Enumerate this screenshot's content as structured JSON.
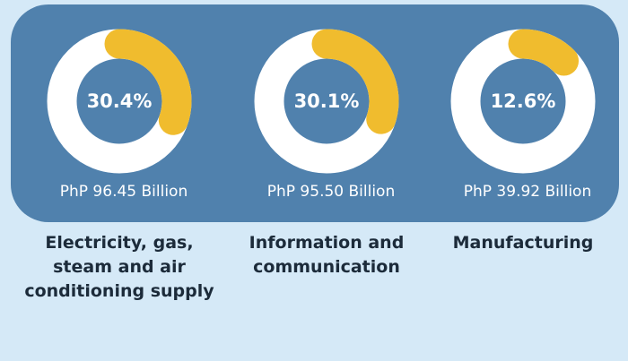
{
  "chart_data": {
    "type": "donut",
    "categories": [
      "Electricity, gas, steam and air conditioning supply",
      "Information and communication",
      "Manufacturing"
    ],
    "values": [
      30.4,
      30.1,
      12.6
    ],
    "value_labels": [
      "30.4%",
      "30.1%",
      "12.6%"
    ],
    "amount_labels": [
      "PhP 96.45 Billion",
      "PhP 95.50 Billion",
      "PhP 39.92 Billion"
    ],
    "color": "#f0bc2e",
    "track_color": "#ffffff",
    "panel_color": "#5081ad"
  }
}
